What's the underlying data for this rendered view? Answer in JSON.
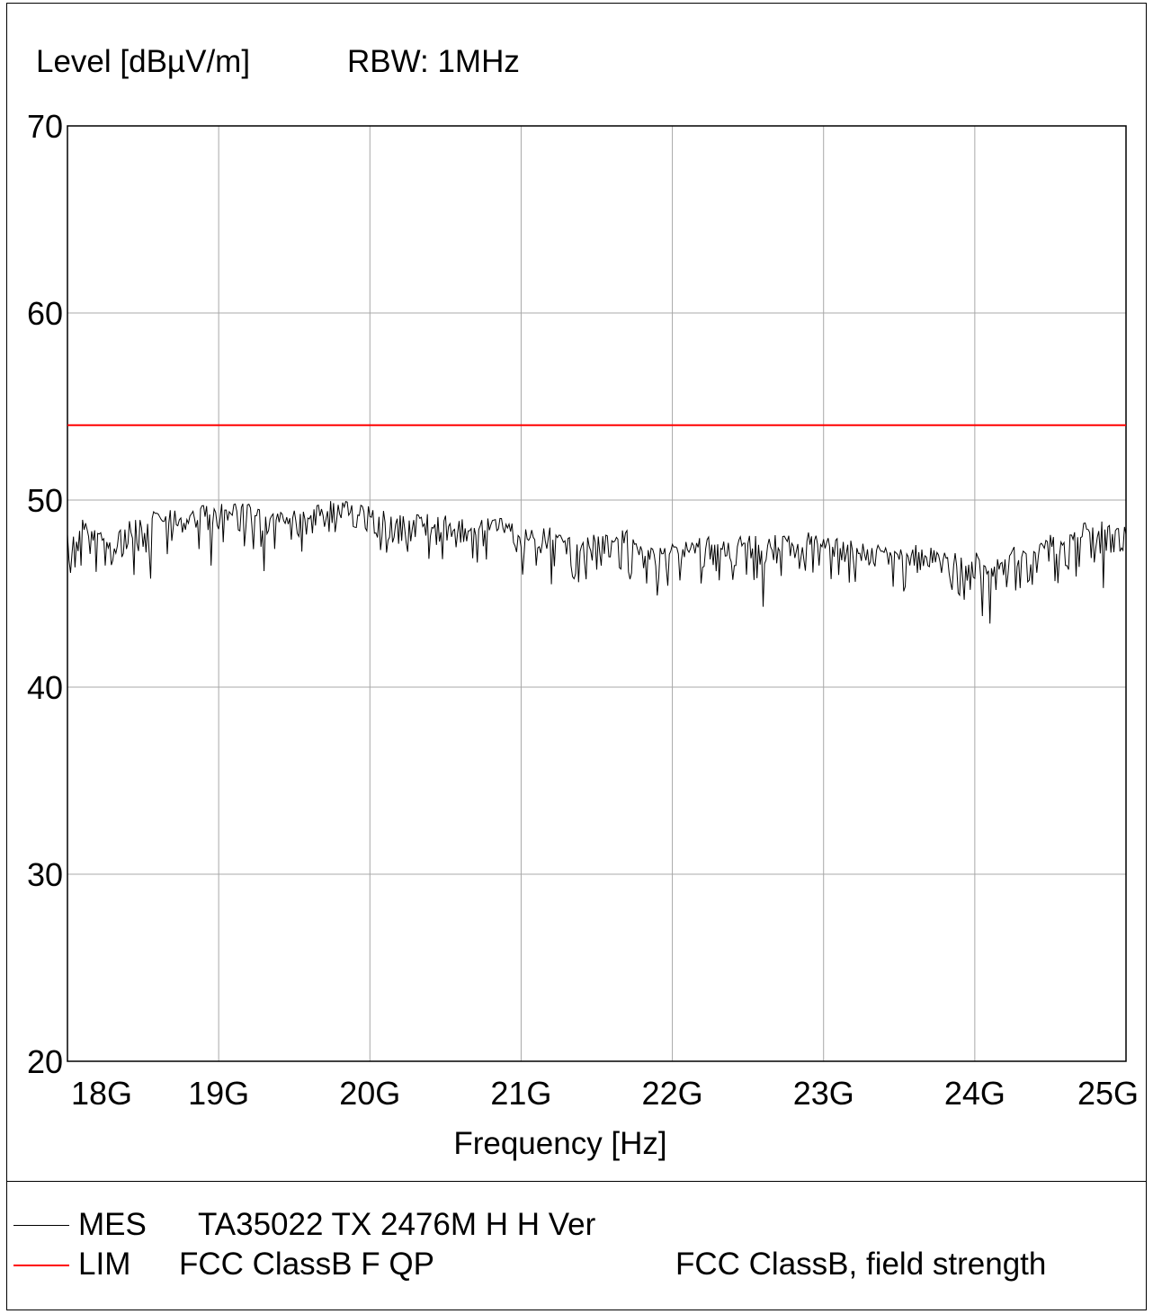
{
  "header": {
    "level_label": "Level [dBµV/m]",
    "rbw_label": "RBW: 1MHz"
  },
  "chart_data": {
    "type": "line",
    "title": "",
    "xlabel": "Frequency [Hz]",
    "ylabel": "Level [dBµV/m]",
    "xlim": [
      18,
      25
    ],
    "ylim": [
      20,
      70
    ],
    "x_unit": "GHz",
    "x_ticks": [
      18,
      19,
      20,
      21,
      22,
      23,
      24,
      25
    ],
    "x_tick_labels": [
      "18G",
      "19G",
      "20G",
      "21G",
      "22G",
      "23G",
      "24G",
      "25G"
    ],
    "y_ticks": [
      20,
      30,
      40,
      50,
      60,
      70
    ],
    "y_tick_labels": [
      "20",
      "30",
      "40",
      "50",
      "60",
      "70"
    ],
    "grid": true,
    "legend_position": "bottom",
    "series": [
      {
        "name": "MES",
        "color": "#000000",
        "x": [
          18.0,
          18.1,
          18.2,
          18.3,
          18.4,
          18.5,
          18.6,
          18.7,
          18.8,
          18.9,
          19.0,
          19.1,
          19.2,
          19.3,
          19.4,
          19.5,
          19.6,
          19.7,
          19.8,
          19.9,
          20.0,
          20.1,
          20.2,
          20.3,
          20.4,
          20.5,
          20.6,
          20.7,
          20.8,
          20.9,
          21.0,
          21.1,
          21.2,
          21.3,
          21.4,
          21.5,
          21.6,
          21.7,
          21.8,
          21.9,
          22.0,
          22.1,
          22.2,
          22.3,
          22.4,
          22.5,
          22.6,
          22.7,
          22.8,
          22.9,
          23.0,
          23.1,
          23.2,
          23.3,
          23.4,
          23.5,
          23.6,
          23.7,
          23.8,
          23.9,
          24.0,
          24.1,
          24.2,
          24.3,
          24.4,
          24.5,
          24.6,
          24.7,
          24.8,
          24.9,
          25.0
        ],
        "y": [
          48.0,
          48.6,
          48.0,
          47.5,
          48.5,
          48.6,
          49.2,
          49.1,
          49.0,
          49.4,
          49.6,
          49.5,
          49.6,
          49.5,
          49.1,
          49.2,
          49.3,
          49.6,
          49.5,
          49.6,
          49.4,
          49.1,
          49.1,
          48.9,
          48.9,
          48.9,
          48.7,
          48.6,
          48.7,
          48.6,
          48.2,
          48.0,
          48.2,
          48.1,
          47.6,
          48.1,
          48.2,
          48.0,
          47.8,
          47.0,
          47.4,
          47.4,
          47.7,
          47.8,
          47.7,
          47.8,
          47.6,
          47.9,
          48.0,
          47.9,
          47.7,
          47.6,
          47.4,
          47.4,
          47.3,
          47.2,
          47.4,
          47.1,
          46.8,
          46.8,
          46.9,
          46.0,
          47.0,
          47.3,
          47.7,
          47.9,
          47.6,
          48.3,
          48.6,
          48.4,
          48.3
        ],
        "dips": [
          [
            18.44,
            46.0
          ],
          [
            18.55,
            45.8
          ],
          [
            18.95,
            46.5
          ],
          [
            19.3,
            46.2
          ],
          [
            20.05,
            48.0
          ],
          [
            21.1,
            46.5
          ],
          [
            21.2,
            45.5
          ],
          [
            21.33,
            46.5
          ],
          [
            21.9,
            44.9
          ],
          [
            22.05,
            45.7
          ],
          [
            22.6,
            44.3
          ],
          [
            23.1,
            46.0
          ],
          [
            23.6,
            46.5
          ],
          [
            23.85,
            45.2
          ],
          [
            24.05,
            43.8
          ],
          [
            24.1,
            43.4
          ],
          [
            24.6,
            46.5
          ],
          [
            24.85,
            45.3
          ]
        ]
      },
      {
        "name": "LIM",
        "color": "#ff0000",
        "x": [
          18,
          25
        ],
        "y": [
          54,
          54
        ]
      }
    ]
  },
  "legend": {
    "items": [
      {
        "code": "MES",
        "name": "TA35022 TX 2476M H H Ver",
        "desc": "",
        "color": "#000000"
      },
      {
        "code": "LIM",
        "name": "FCC ClassB F QP",
        "desc": "FCC ClassB, field strength",
        "color": "#ff0000"
      }
    ]
  }
}
